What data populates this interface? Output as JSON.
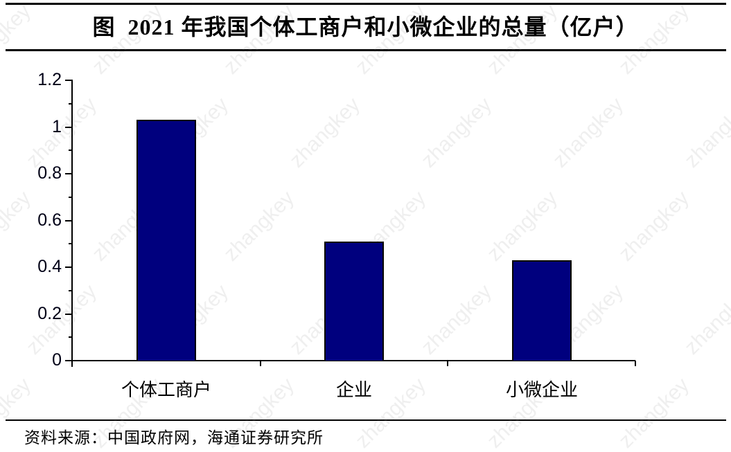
{
  "title": "图  2021 年我国个体工商户和小微企业的总量（亿户）",
  "source": "资料来源：中国政府网，海通证券研究所",
  "watermark_text": "zhangkey",
  "colors": {
    "bar_fill": "#00007E",
    "bar_border": "#000000",
    "axis": "#000000",
    "text": "#000000"
  },
  "chart_data": {
    "type": "bar",
    "title": "图  2021 年我国个体工商户和小微企业的总量（亿户）",
    "categories": [
      "个体工商户",
      "企业",
      "小微企业"
    ],
    "values": [
      1.03,
      0.51,
      0.43
    ],
    "xlabel": "",
    "ylabel": "",
    "ylim": [
      0,
      1.2
    ],
    "yticks": [
      0,
      0.2,
      0.4,
      0.6,
      0.8,
      1,
      1.2
    ],
    "ytick_labels": [
      "0",
      "0.2",
      "0.4",
      "0.6",
      "0.8",
      "1",
      "1.2"
    ],
    "minor_ytick_step": 0.1,
    "grid": false,
    "legend": false,
    "unit": "亿户"
  }
}
